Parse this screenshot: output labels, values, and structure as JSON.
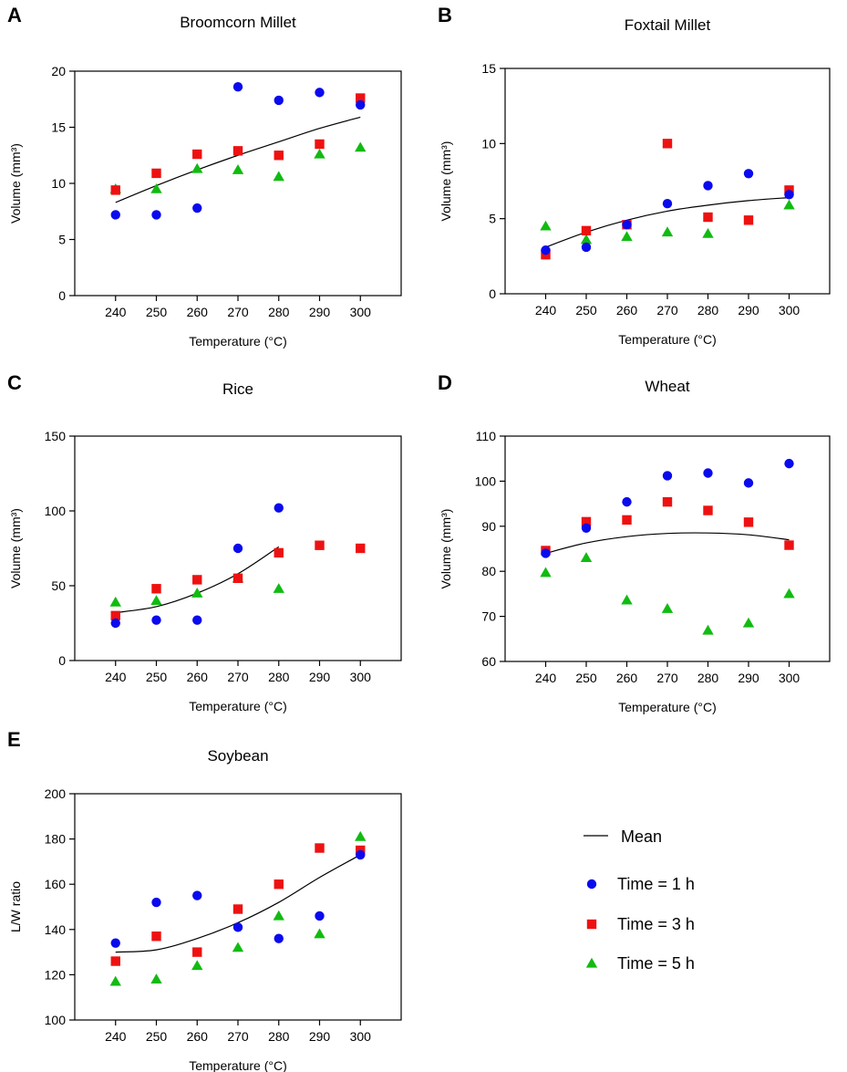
{
  "colors": {
    "time_1h": "#0a0aee",
    "time_3h": "#ee1111",
    "time_5h": "#11bb11",
    "mean": "#000000"
  },
  "legend": [
    {
      "key": "mean",
      "label": "Mean",
      "shape": "line"
    },
    {
      "key": "time_1h",
      "label": "Time = 1 h",
      "shape": "circle"
    },
    {
      "key": "time_3h",
      "label": "Time = 3 h",
      "shape": "square"
    },
    {
      "key": "time_5h",
      "label": "Time = 5 h",
      "shape": "triangle"
    }
  ],
  "chart_data": [
    {
      "panel": "A",
      "type": "scatter",
      "title": "Broomcorn Millet",
      "xlabel": "Temperature (°C)",
      "ylabel": "Volume (mm³)",
      "x": [
        240,
        250,
        260,
        270,
        280,
        290,
        300
      ],
      "xlim": [
        230,
        310
      ],
      "ylim": [
        0,
        20
      ],
      "yticks": [
        0,
        5,
        10,
        15,
        20
      ],
      "series": [
        {
          "name": "Time = 1 h",
          "key": "time_1h",
          "values": [
            7.2,
            7.2,
            7.8,
            18.6,
            17.4,
            18.1,
            17.0
          ]
        },
        {
          "name": "Time = 3 h",
          "key": "time_3h",
          "values": [
            9.4,
            10.9,
            12.6,
            12.9,
            12.5,
            13.5,
            17.6
          ]
        },
        {
          "name": "Time = 5 h",
          "key": "time_5h",
          "values": [
            9.5,
            9.5,
            11.3,
            11.2,
            10.6,
            12.6,
            13.2
          ]
        },
        {
          "name": "Mean",
          "key": "mean",
          "values": [
            8.3,
            9.8,
            11.2,
            12.5,
            13.7,
            14.9,
            15.9
          ]
        }
      ]
    },
    {
      "panel": "B",
      "type": "scatter",
      "title": "Foxtail Millet",
      "xlabel": "Temperature (°C)",
      "ylabel": "Volume (mm³)",
      "x": [
        240,
        250,
        260,
        270,
        280,
        290,
        300
      ],
      "xlim": [
        230,
        310
      ],
      "ylim": [
        0,
        15
      ],
      "yticks": [
        0,
        5,
        10,
        15
      ],
      "series": [
        {
          "name": "Time = 1 h",
          "key": "time_1h",
          "values": [
            2.9,
            3.1,
            4.6,
            6.0,
            7.2,
            8.0,
            6.6
          ]
        },
        {
          "name": "Time = 3 h",
          "key": "time_3h",
          "values": [
            2.6,
            4.2,
            4.6,
            10.0,
            5.1,
            4.9,
            6.9
          ]
        },
        {
          "name": "Time = 5 h",
          "key": "time_5h",
          "values": [
            4.5,
            3.6,
            3.8,
            4.1,
            4.0,
            null,
            5.9
          ]
        },
        {
          "name": "Mean",
          "key": "mean",
          "values": [
            3.1,
            4.1,
            4.9,
            5.5,
            5.9,
            6.2,
            6.4
          ]
        }
      ]
    },
    {
      "panel": "C",
      "type": "scatter",
      "title": "Rice",
      "xlabel": "Temperature (°C)",
      "ylabel": "Volume (mm³)",
      "x": [
        240,
        250,
        260,
        270,
        280,
        290,
        300
      ],
      "xlim": [
        230,
        310
      ],
      "ylim": [
        0,
        150
      ],
      "yticks": [
        0,
        50,
        100,
        150
      ],
      "series": [
        {
          "name": "Time = 1 h",
          "key": "time_1h",
          "values": [
            25,
            27,
            27,
            75,
            102,
            null,
            null
          ]
        },
        {
          "name": "Time = 3 h",
          "key": "time_3h",
          "values": [
            30,
            48,
            54,
            55,
            72,
            77,
            75
          ]
        },
        {
          "name": "Time = 5 h",
          "key": "time_5h",
          "values": [
            39,
            40,
            45,
            55,
            48,
            null,
            null
          ]
        },
        {
          "name": "Mean",
          "key": "mean",
          "values": [
            32,
            36,
            45,
            58,
            76,
            null,
            null
          ]
        }
      ]
    },
    {
      "panel": "D",
      "type": "scatter",
      "title": "Wheat",
      "xlabel": "Temperature (°C)",
      "ylabel": "Volume (mm³)",
      "x": [
        240,
        250,
        260,
        270,
        280,
        290,
        300
      ],
      "xlim": [
        230,
        310
      ],
      "ylim": [
        60,
        110
      ],
      "yticks": [
        60,
        70,
        80,
        90,
        100,
        110
      ],
      "series": [
        {
          "name": "Time = 1 h",
          "key": "time_1h",
          "values": [
            84.0,
            89.6,
            95.4,
            101.2,
            101.8,
            99.6,
            103.9
          ]
        },
        {
          "name": "Time = 3 h",
          "key": "time_3h",
          "values": [
            84.6,
            91.0,
            91.4,
            95.4,
            93.5,
            90.9,
            85.8
          ]
        },
        {
          "name": "Time = 5 h",
          "key": "time_5h",
          "values": [
            79.7,
            83.0,
            73.6,
            71.7,
            66.9,
            68.5,
            75.0
          ]
        },
        {
          "name": "Mean",
          "key": "mean",
          "values": [
            84.0,
            86.3,
            87.7,
            88.4,
            88.5,
            88.1,
            87.0
          ]
        }
      ]
    },
    {
      "panel": "E",
      "type": "scatter",
      "title": "Soybean",
      "xlabel": "Temperature (°C)",
      "ylabel": "L/W ratio",
      "x": [
        240,
        250,
        260,
        270,
        280,
        290,
        300
      ],
      "xlim": [
        230,
        310
      ],
      "ylim": [
        100,
        200
      ],
      "yticks": [
        100,
        120,
        140,
        160,
        180,
        200
      ],
      "series": [
        {
          "name": "Time = 1 h",
          "key": "time_1h",
          "values": [
            134,
            152,
            155,
            141,
            136,
            146,
            173
          ]
        },
        {
          "name": "Time = 3 h",
          "key": "time_3h",
          "values": [
            126,
            137,
            130,
            149,
            160,
            176,
            175
          ]
        },
        {
          "name": "Time = 5 h",
          "key": "time_5h",
          "values": [
            117,
            118,
            124,
            132,
            146,
            138,
            181
          ]
        },
        {
          "name": "Mean",
          "key": "mean",
          "values": [
            130,
            131,
            136,
            143,
            152,
            163,
            173
          ]
        }
      ]
    }
  ]
}
